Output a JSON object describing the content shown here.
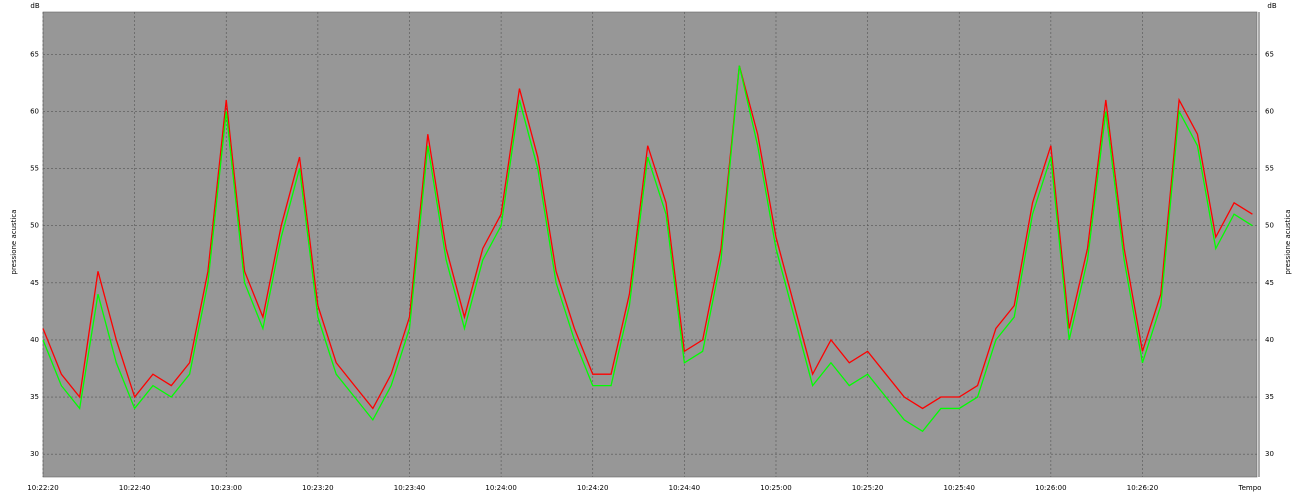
{
  "chart_data": {
    "type": "line",
    "y_unit": "dB",
    "y_label": "pressione acustica",
    "x_label": "Tempo",
    "x": [
      "10:22:20",
      "10:22:24",
      "10:22:28",
      "10:22:32",
      "10:22:36",
      "10:22:40",
      "10:22:44",
      "10:22:48",
      "10:22:52",
      "10:22:56",
      "10:23:00",
      "10:23:04",
      "10:23:08",
      "10:23:12",
      "10:23:16",
      "10:23:20",
      "10:23:24",
      "10:23:28",
      "10:23:32",
      "10:23:36",
      "10:23:40",
      "10:23:44",
      "10:23:48",
      "10:23:52",
      "10:23:56",
      "10:24:00",
      "10:24:04",
      "10:24:08",
      "10:24:12",
      "10:24:16",
      "10:24:20",
      "10:24:24",
      "10:24:28",
      "10:24:32",
      "10:24:36",
      "10:24:40",
      "10:24:44",
      "10:24:48",
      "10:24:52",
      "10:24:56",
      "10:25:00",
      "10:25:04",
      "10:25:08",
      "10:25:12",
      "10:25:16",
      "10:25:20",
      "10:25:24",
      "10:25:28",
      "10:25:32",
      "10:25:36",
      "10:25:40",
      "10:25:44",
      "10:25:48",
      "10:25:52",
      "10:25:56",
      "10:26:00",
      "10:26:04",
      "10:26:08",
      "10:26:12",
      "10:26:16",
      "10:26:20",
      "10:26:24",
      "10:26:28",
      "10:26:32",
      "10:26:36",
      "10:26:40",
      "10:26:44"
    ],
    "series": [
      {
        "color": "#ff0000",
        "values": [
          41,
          37,
          35,
          46,
          40,
          35,
          37,
          36,
          38,
          46,
          61,
          46,
          42,
          50,
          56,
          43,
          38,
          36,
          34,
          37,
          42,
          58,
          48,
          42,
          48,
          51,
          62,
          56,
          46,
          41,
          37,
          37,
          44,
          57,
          52,
          39,
          40,
          48,
          64,
          58,
          49,
          43,
          37,
          40,
          38,
          39,
          37,
          35,
          34,
          35,
          35,
          36,
          41,
          43,
          52,
          57,
          41,
          48,
          61,
          48,
          39,
          44,
          61,
          58,
          49,
          52,
          51
        ]
      },
      {
        "color": "#00ff00",
        "values": [
          40,
          36,
          34,
          44,
          38,
          34,
          36,
          35,
          37,
          45,
          60,
          45,
          41,
          49,
          55,
          42,
          37,
          35,
          33,
          36,
          41,
          57,
          47,
          41,
          47,
          50,
          61,
          55,
          45,
          40,
          36,
          36,
          43,
          56,
          51,
          38,
          39,
          47,
          64,
          57,
          48,
          42,
          36,
          38,
          36,
          37,
          35,
          33,
          32,
          34,
          34,
          35,
          40,
          42,
          51,
          56,
          40,
          47,
          60,
          47,
          38,
          43,
          60,
          57,
          48,
          51,
          50
        ]
      }
    ],
    "xlim": [
      "10:22:20",
      "10:26:45"
    ],
    "xticks": [
      "10:22:20",
      "10:22:40",
      "10:23:00",
      "10:23:20",
      "10:23:40",
      "10:24:00",
      "10:24:20",
      "10:24:40",
      "10:25:00",
      "10:25:20",
      "10:25:40",
      "10:26:00",
      "10:26:20"
    ],
    "ylim": [
      28,
      68.7
    ],
    "yticks": [
      30,
      35,
      40,
      45,
      50,
      55,
      60,
      65
    ],
    "grid": true
  }
}
